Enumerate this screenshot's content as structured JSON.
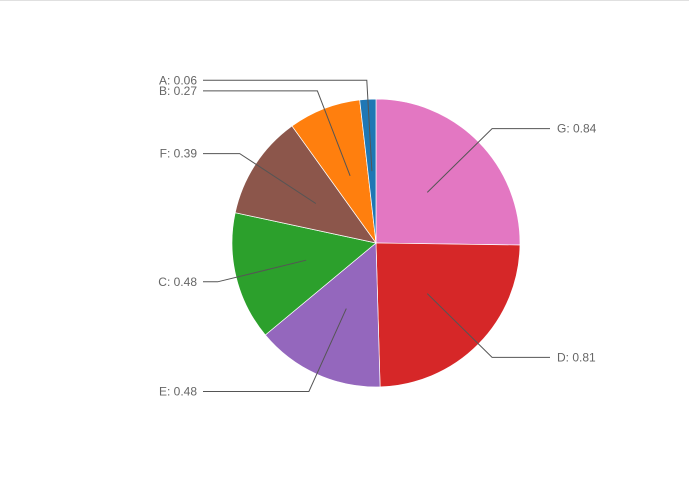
{
  "page": {
    "background_color": "#ffffff",
    "top_border_color": "#e0e0e0"
  },
  "chart_data": {
    "type": "pie",
    "title": "",
    "legend": "none",
    "labels": [
      "A",
      "B",
      "C",
      "D",
      "E",
      "F",
      "G"
    ],
    "values": [
      0.06,
      0.27,
      0.48,
      0.81,
      0.48,
      0.39,
      0.84
    ],
    "slice_colors": [
      "#1f77b4",
      "#ff7f0e",
      "#2ca02c",
      "#d62728",
      "#9467bd",
      "#8c564b",
      "#e377c2"
    ],
    "draw_order_clockwise_from_top": [
      "G",
      "D",
      "E",
      "C",
      "F",
      "B",
      "A"
    ],
    "label_texts": {
      "A": "A: 0.06",
      "B": "B: 0.27",
      "C": "C: 0.48",
      "D": "D: 0.81",
      "E": "E: 0.48",
      "F": "F: 0.39",
      "G": "G: 0.84"
    },
    "label_placement": "outside-with-leader-lines",
    "text_color": "#666666",
    "leader_line_color": "#555555",
    "slice_border_color": "#ffffff"
  }
}
